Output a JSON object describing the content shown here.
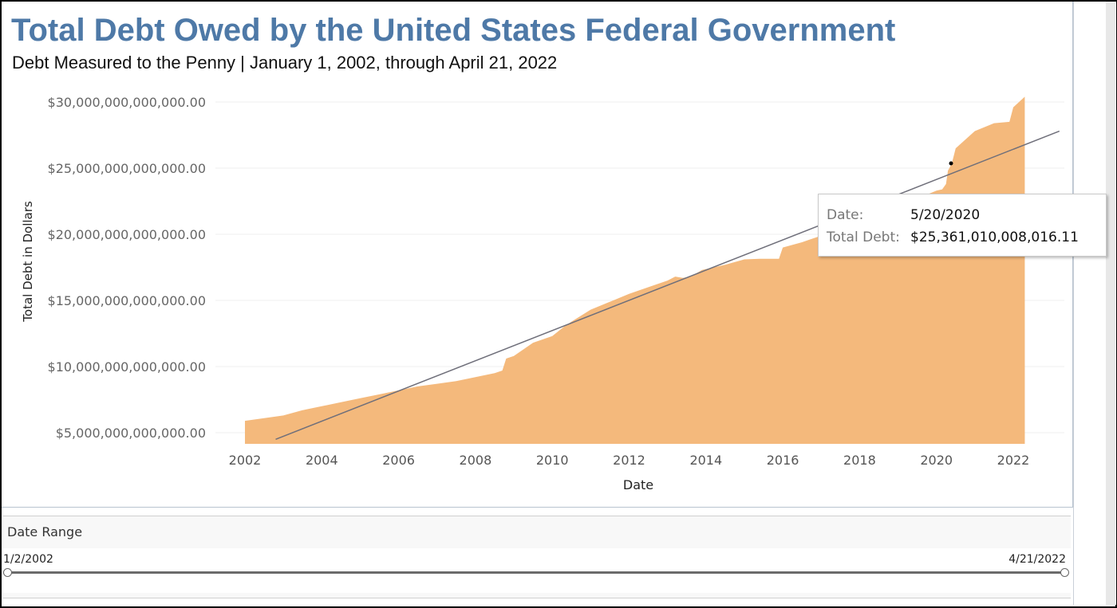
{
  "title": "Total Debt Owed by the United States Federal Government",
  "subtitle": "Debt Measured to the Penny | January 1, 2002, through April 21, 2022",
  "tooltip": {
    "date_label": "Date:",
    "date_value": "5/20/2020",
    "debt_label": "Total Debt:",
    "debt_value": "$25,361,010,008,016.11"
  },
  "filter": {
    "title": "Date Range",
    "start": "1/2/2002",
    "end": "4/21/2022"
  },
  "colors": {
    "title": "#4e79a7",
    "area": "#f4b97c",
    "trend": "#6f6f7a"
  },
  "chart_data": {
    "type": "area",
    "xlabel": "Date",
    "ylabel": "Total Debt in Dollars",
    "x_ticks": [
      "2002",
      "2004",
      "2006",
      "2008",
      "2010",
      "2012",
      "2014",
      "2016",
      "2018",
      "2020",
      "2022"
    ],
    "y_ticks": [
      "$5,000,000,000,000.00",
      "$10,000,000,000,000.00",
      "$15,000,000,000,000.00",
      "$20,000,000,000,000.00",
      "$25,000,000,000,000.00",
      "$30,000,000,000,000.00"
    ],
    "xlim": [
      2001.2,
      2023.2
    ],
    "ylim": [
      4500000000000,
      30000000000000
    ],
    "grid": "horizontal",
    "series": [
      {
        "x": [
          2002.0,
          2002.5,
          2003.0,
          2003.5,
          2004.0,
          2004.5,
          2005.0,
          2005.5,
          2006.0,
          2006.5,
          2007.0,
          2007.5,
          2008.0,
          2008.5,
          2008.7,
          2008.8,
          2009.0,
          2009.5,
          2010.0,
          2010.3,
          2010.5,
          2011.0,
          2011.5,
          2012.0,
          2012.5,
          2013.0,
          2013.2,
          2013.4,
          2013.6,
          2013.9,
          2014.5,
          2015.0,
          2015.4,
          2015.9,
          2016.0,
          2016.5,
          2017.0,
          2017.5,
          2018.0,
          2018.5,
          2019.0,
          2019.5,
          2020.0,
          2020.15,
          2020.25,
          2020.3,
          2020.4,
          2020.5,
          2021.0,
          2021.5,
          2021.9,
          2022.0,
          2022.3
        ],
        "values": [
          5900000000000,
          6100000000000,
          6300000000000,
          6700000000000,
          7000000000000,
          7300000000000,
          7600000000000,
          7900000000000,
          8200000000000,
          8500000000000,
          8700000000000,
          8900000000000,
          9200000000000,
          9500000000000,
          9700000000000,
          10600000000000,
          10800000000000,
          11800000000000,
          12300000000000,
          13000000000000,
          13400000000000,
          14300000000000,
          14900000000000,
          15500000000000,
          16000000000000,
          16500000000000,
          16800000000000,
          16700000000000,
          16800000000000,
          17300000000000,
          17700000000000,
          18100000000000,
          18150000000000,
          18150000000000,
          19000000000000,
          19400000000000,
          19900000000000,
          20500000000000,
          21100000000000,
          21800000000000,
          22100000000000,
          22700000000000,
          23300000000000,
          23400000000000,
          23800000000000,
          24800000000000,
          25361010008016.11,
          26500000000000,
          27800000000000,
          28400000000000,
          28500000000000,
          29600000000000,
          30400000000000
        ]
      }
    ],
    "trendline": {
      "x": [
        2002.8,
        2023.2
      ],
      "values": [
        4500000000000,
        27800000000000
      ]
    },
    "highlight_point": {
      "x": 2020.38,
      "value": 25361010008016.11
    }
  }
}
